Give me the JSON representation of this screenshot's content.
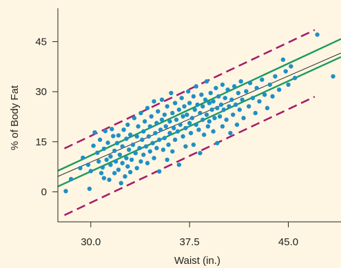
{
  "chart_data": {
    "type": "scatter",
    "xlabel": "Waist (in.)",
    "ylabel": "% of Body Fat",
    "xlim": [
      27.5,
      49
    ],
    "ylim": [
      -9,
      55
    ],
    "xticks": [
      30.0,
      37.5,
      45.0
    ],
    "xtick_labels": [
      "30.0",
      "37.5",
      "45.0"
    ],
    "yticks": [
      0,
      15,
      30,
      45
    ],
    "ytick_labels": [
      "0",
      "15",
      "30",
      "45"
    ],
    "grid": false,
    "colors": {
      "points": "#1f8fc6",
      "regression_line": "#222222",
      "confidence_band": "#1a9a5c",
      "prediction_band": "#a61c6c",
      "background": "#fef6e2"
    },
    "regression_line": {
      "x": [
        27.5,
        49
      ],
      "y": [
        4.6,
        41.6
      ]
    },
    "confidence_band": {
      "upper": {
        "x": [
          27.5,
          49
        ],
        "y": [
          6.3,
          45.8
        ]
      },
      "lower": {
        "x": [
          27.5,
          49
        ],
        "y": [
          1.6,
          40.4
        ]
      }
    },
    "prediction_band": {
      "upper": {
        "x": [
          28,
          47
        ],
        "y": [
          13.0,
          48.5
        ]
      },
      "lower": {
        "x": [
          28,
          47
        ],
        "y": [
          -7.0,
          28.5
        ]
      }
    },
    "points": [
      [
        28.1,
        0.2
      ],
      [
        28.5,
        3.8
      ],
      [
        29.2,
        7.1
      ],
      [
        29.4,
        10.2
      ],
      [
        29.8,
        8.1
      ],
      [
        29.9,
        0.9
      ],
      [
        30.0,
        6.2
      ],
      [
        30.2,
        13.8
      ],
      [
        30.3,
        17.8
      ],
      [
        30.5,
        11.7
      ],
      [
        30.6,
        9.1
      ],
      [
        30.7,
        15.6
      ],
      [
        30.8,
        5.6
      ],
      [
        30.9,
        7.3
      ],
      [
        31.0,
        4.1
      ],
      [
        31.0,
        12.9
      ],
      [
        31.1,
        18.2
      ],
      [
        31.2,
        9.6
      ],
      [
        31.3,
        14.7
      ],
      [
        31.4,
        3.6
      ],
      [
        31.5,
        8.1
      ],
      [
        31.5,
        10.6
      ],
      [
        31.6,
        18.8
      ],
      [
        31.7,
        16.7
      ],
      [
        31.8,
        5.6
      ],
      [
        31.8,
        12.3
      ],
      [
        31.9,
        9.1
      ],
      [
        32.0,
        14.6
      ],
      [
        32.1,
        6.6
      ],
      [
        32.1,
        16.9
      ],
      [
        32.2,
        11.1
      ],
      [
        32.3,
        2.6
      ],
      [
        32.4,
        8.6
      ],
      [
        32.4,
        13.6
      ],
      [
        32.5,
        18.6
      ],
      [
        32.6,
        4.6
      ],
      [
        32.7,
        10.1
      ],
      [
        32.7,
        15.9
      ],
      [
        32.8,
        7.6
      ],
      [
        32.8,
        20.1
      ],
      [
        32.9,
        12.6
      ],
      [
        33.0,
        5.9
      ],
      [
        33.0,
        17.1
      ],
      [
        33.1,
        9.6
      ],
      [
        33.2,
        14.1
      ],
      [
        33.3,
        22.1
      ],
      [
        33.4,
        11.6
      ],
      [
        33.5,
        7.1
      ],
      [
        33.5,
        16.6
      ],
      [
        33.6,
        19.6
      ],
      [
        33.7,
        13.1
      ],
      [
        33.8,
        9.1
      ],
      [
        33.8,
        23.6
      ],
      [
        33.9,
        15.6
      ],
      [
        34.0,
        11.1
      ],
      [
        34.0,
        18.1
      ],
      [
        34.1,
        21.1
      ],
      [
        34.2,
        13.6
      ],
      [
        34.3,
        25.1
      ],
      [
        34.3,
        8.6
      ],
      [
        34.4,
        16.6
      ],
      [
        34.5,
        19.6
      ],
      [
        34.5,
        12.1
      ],
      [
        34.6,
        22.6
      ],
      [
        34.7,
        14.6
      ],
      [
        34.8,
        27.1
      ],
      [
        34.8,
        10.1
      ],
      [
        34.9,
        17.6
      ],
      [
        35.0,
        20.6
      ],
      [
        35.0,
        13.1
      ],
      [
        35.1,
        24.1
      ],
      [
        35.2,
        15.6
      ],
      [
        35.2,
        6.1
      ],
      [
        35.3,
        18.6
      ],
      [
        35.4,
        21.6
      ],
      [
        35.4,
        27.6
      ],
      [
        35.5,
        12.6
      ],
      [
        35.6,
        23.1
      ],
      [
        35.6,
        16.1
      ],
      [
        35.7,
        19.6
      ],
      [
        35.8,
        25.6
      ],
      [
        35.8,
        9.6
      ],
      [
        35.9,
        14.1
      ],
      [
        36.0,
        21.1
      ],
      [
        36.0,
        17.6
      ],
      [
        36.1,
        29.6
      ],
      [
        36.2,
        23.6
      ],
      [
        36.2,
        12.1
      ],
      [
        36.3,
        19.1
      ],
      [
        36.4,
        26.6
      ],
      [
        36.4,
        15.6
      ],
      [
        36.5,
        21.6
      ],
      [
        36.6,
        18.1
      ],
      [
        36.7,
        24.6
      ],
      [
        36.7,
        8.1
      ],
      [
        36.8,
        20.1
      ],
      [
        36.9,
        28.1
      ],
      [
        37.0,
        16.6
      ],
      [
        37.0,
        22.6
      ],
      [
        37.1,
        25.6
      ],
      [
        37.2,
        19.1
      ],
      [
        37.2,
        13.6
      ],
      [
        37.3,
        23.1
      ],
      [
        37.4,
        30.1
      ],
      [
        37.5,
        20.6
      ],
      [
        37.5,
        26.6
      ],
      [
        37.6,
        17.6
      ],
      [
        37.7,
        22.1
      ],
      [
        37.8,
        28.6
      ],
      [
        37.8,
        14.1
      ],
      [
        37.9,
        24.6
      ],
      [
        38.0,
        20.1
      ],
      [
        38.0,
        31.6
      ],
      [
        38.1,
        26.1
      ],
      [
        38.2,
        18.6
      ],
      [
        38.3,
        23.6
      ],
      [
        38.3,
        11.6
      ],
      [
        38.4,
        29.1
      ],
      [
        38.5,
        21.6
      ],
      [
        38.5,
        25.6
      ],
      [
        38.6,
        17.1
      ],
      [
        38.7,
        27.6
      ],
      [
        38.8,
        23.1
      ],
      [
        38.8,
        33.1
      ],
      [
        38.9,
        19.6
      ],
      [
        39.0,
        26.6
      ],
      [
        39.0,
        21.1
      ],
      [
        39.1,
        29.6
      ],
      [
        39.2,
        24.6
      ],
      [
        39.3,
        18.1
      ],
      [
        39.3,
        27.1
      ],
      [
        39.4,
        22.1
      ],
      [
        39.5,
        31.1
      ],
      [
        39.6,
        25.1
      ],
      [
        39.6,
        14.6
      ],
      [
        39.7,
        28.6
      ],
      [
        39.8,
        22.6
      ],
      [
        39.9,
        26.1
      ],
      [
        40.0,
        32.1
      ],
      [
        40.0,
        19.6
      ],
      [
        40.1,
        24.6
      ],
      [
        40.2,
        28.1
      ],
      [
        40.3,
        21.6
      ],
      [
        40.4,
        30.6
      ],
      [
        40.5,
        25.6
      ],
      [
        40.6,
        17.6
      ],
      [
        40.7,
        27.6
      ],
      [
        40.8,
        23.1
      ],
      [
        40.9,
        31.6
      ],
      [
        41.0,
        26.1
      ],
      [
        41.1,
        20.1
      ],
      [
        41.2,
        29.6
      ],
      [
        41.3,
        24.6
      ],
      [
        41.4,
        33.1
      ],
      [
        41.5,
        27.6
      ],
      [
        41.6,
        22.1
      ],
      [
        41.8,
        30.1
      ],
      [
        42.0,
        25.6
      ],
      [
        42.1,
        32.6
      ],
      [
        42.3,
        28.1
      ],
      [
        42.5,
        23.6
      ],
      [
        42.6,
        31.1
      ],
      [
        42.8,
        27.1
      ],
      [
        43.0,
        33.6
      ],
      [
        43.2,
        29.1
      ],
      [
        43.4,
        25.1
      ],
      [
        43.6,
        32.1
      ],
      [
        43.8,
        28.6
      ],
      [
        44.0,
        34.6
      ],
      [
        44.3,
        30.6
      ],
      [
        44.6,
        39.6
      ],
      [
        44.8,
        36.1
      ],
      [
        45.0,
        32.1
      ],
      [
        45.2,
        37.6
      ],
      [
        45.5,
        34.1
      ],
      [
        47.2,
        47.1
      ],
      [
        48.4,
        34.6
      ]
    ]
  }
}
